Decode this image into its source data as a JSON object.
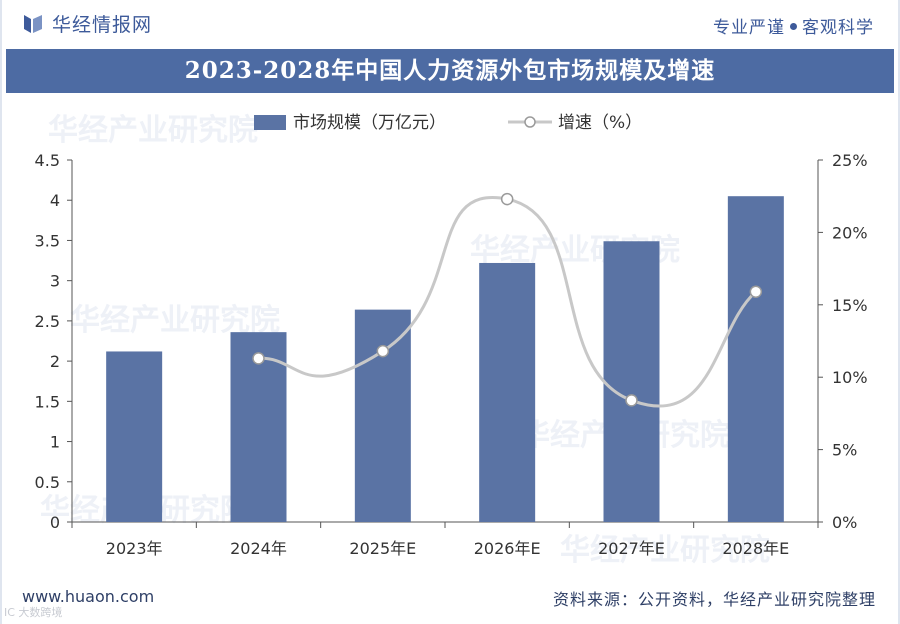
{
  "header": {
    "brand": "华经情报网",
    "slogan_left": "专业严谨",
    "slogan_right": "客观科学"
  },
  "footer": {
    "website": "www.huaon.com",
    "source": "资料来源：公开资料，华经产业研究院整理"
  },
  "watermark": {
    "text": "华经产业研究院",
    "corner": "IC 大数跨境"
  },
  "colors": {
    "bar": "#5a73a4",
    "line": "#c8c8c8",
    "title_bg": "#4d6ba3",
    "text": "#333333"
  },
  "chart_data": {
    "type": "bar",
    "title": "2023-2028年中国人力资源外包市场规模及增速",
    "categories": [
      "2023年",
      "2024年",
      "2025年E",
      "2026年E",
      "2027年E",
      "2028年E"
    ],
    "series": [
      {
        "name": "市场规模（万亿元）",
        "type": "bar",
        "axis": "left",
        "values": [
          2.12,
          2.36,
          2.64,
          3.22,
          3.49,
          4.05
        ]
      },
      {
        "name": "增速（%）",
        "type": "line",
        "axis": "right",
        "values": [
          null,
          11.3,
          11.8,
          22.3,
          8.4,
          15.9
        ]
      }
    ],
    "y_left": {
      "min": 0,
      "max": 4.5,
      "ticks": [
        "0",
        "0.5",
        "1",
        "1.5",
        "2",
        "2.5",
        "3",
        "3.5",
        "4",
        "4.5"
      ]
    },
    "y_right": {
      "min": 0,
      "max": 25,
      "ticks": [
        "0%",
        "5%",
        "10%",
        "15%",
        "20%",
        "25%"
      ]
    },
    "legend_position": "top-left",
    "grid": false
  }
}
